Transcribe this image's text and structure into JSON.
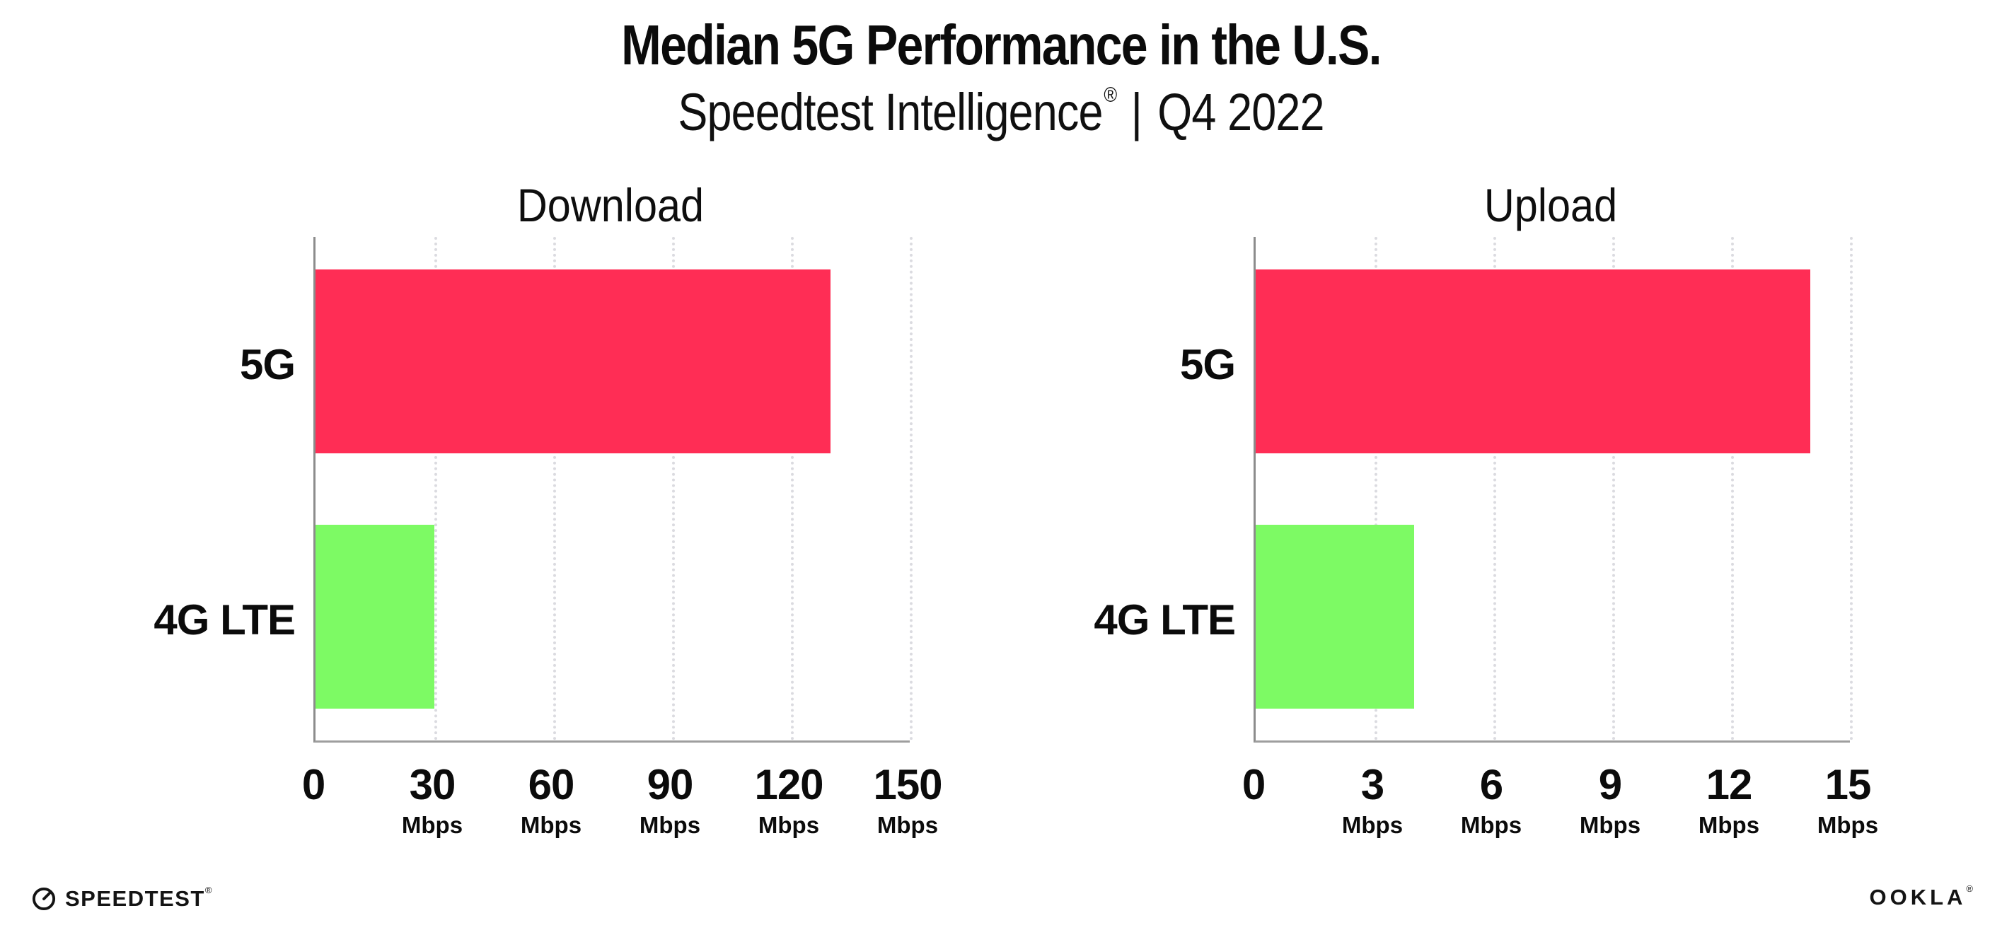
{
  "header": {
    "title": "Median 5G Performance in the U.S.",
    "subtitle": {
      "brand": "Speedtest Intelligence",
      "reg": "®",
      "separator": "|",
      "period": "Q4 2022"
    }
  },
  "colors": {
    "bar_5g": "#FF2D55",
    "bar_4g_lte": "#7DFA64",
    "gridline": "#DBDBE0",
    "axis_left": "#8C8C8C",
    "axis_bottom": "#9E9E9E",
    "text": "#0B0B0B"
  },
  "chart_data": [
    {
      "type": "bar",
      "orientation": "horizontal",
      "title": "Download",
      "categories": [
        "5G",
        "4G LTE"
      ],
      "values": [
        130,
        30
      ],
      "unit": "Mbps",
      "xlim": [
        0,
        150
      ],
      "grid": "vertical-dotted",
      "legend": "none",
      "ticks": [
        {
          "label": "0",
          "unit": ""
        },
        {
          "label": "30",
          "unit": "Mbps"
        },
        {
          "label": "60",
          "unit": "Mbps"
        },
        {
          "label": "90",
          "unit": "Mbps"
        },
        {
          "label": "120",
          "unit": "Mbps"
        },
        {
          "label": "150",
          "unit": "Mbps"
        }
      ]
    },
    {
      "type": "bar",
      "orientation": "horizontal",
      "title": "Upload",
      "categories": [
        "5G",
        "4G LTE"
      ],
      "values": [
        14,
        4
      ],
      "unit": "Mbps",
      "xlim": [
        0,
        15
      ],
      "grid": "vertical-dotted",
      "legend": "none",
      "ticks": [
        {
          "label": "0",
          "unit": ""
        },
        {
          "label": "3",
          "unit": "Mbps"
        },
        {
          "label": "6",
          "unit": "Mbps"
        },
        {
          "label": "9",
          "unit": "Mbps"
        },
        {
          "label": "12",
          "unit": "Mbps"
        },
        {
          "label": "15",
          "unit": "Mbps"
        }
      ]
    }
  ],
  "footer": {
    "left_icon": "speedtest-gauge-icon",
    "left_logo": "SPEEDTEST",
    "left_mark": "®",
    "right_logo": "OOKLA",
    "right_mark": "®"
  }
}
